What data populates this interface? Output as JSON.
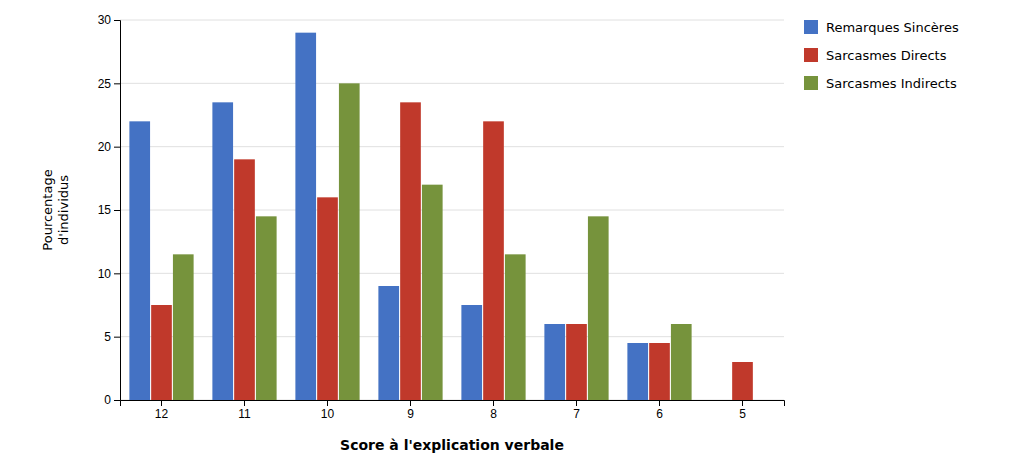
{
  "chart_data": {
    "type": "bar",
    "xlabel": "Score à l'explication verbale",
    "ylabel": "Pourcentage\nd'individus",
    "categories": [
      "12",
      "11",
      "10",
      "9",
      "8",
      "7",
      "6",
      "5"
    ],
    "series": [
      {
        "name": "Remarques Sincères",
        "color": "#4472C4",
        "values": [
          22,
          23.5,
          29,
          9,
          7.5,
          6,
          4.5,
          0
        ]
      },
      {
        "name": "Sarcasmes Directs",
        "color": "#C0392B",
        "values": [
          7.5,
          19,
          16,
          23.5,
          22,
          6,
          4.5,
          3
        ]
      },
      {
        "name": "Sarcasmes Indirects",
        "color": "#76933C",
        "values": [
          11.5,
          14.5,
          25,
          17,
          11.5,
          14.5,
          6,
          0
        ]
      }
    ],
    "ylim": [
      0,
      30
    ],
    "yticks": [
      0,
      5,
      10,
      15,
      20,
      25,
      30
    ],
    "grid": true,
    "legend": "right"
  }
}
